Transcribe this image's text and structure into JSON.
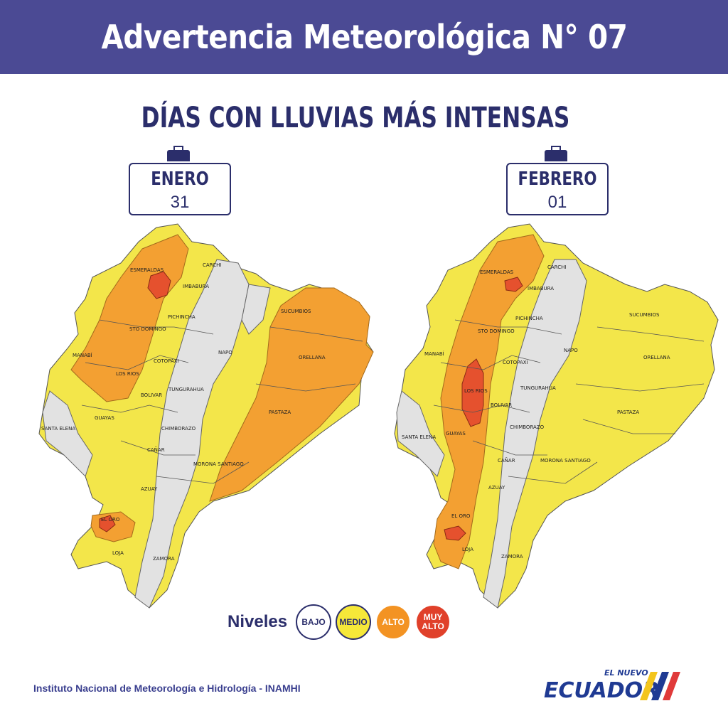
{
  "header": {
    "title": "Advertencia Meteorológica N° 07"
  },
  "subtitle": {
    "part1": "DÍAS CON LLUVIAS ",
    "part2": "MÁS INTENSAS"
  },
  "maps": [
    {
      "month": "ENERO",
      "day": "31"
    },
    {
      "month": "FEBRERO",
      "day": "01"
    }
  ],
  "map_labels": {
    "esmeraldas": "ESMERALDAS",
    "carchi": "CARCHI",
    "imbabura": "IMBABURA",
    "sucumbios": "SUCUMBIOS",
    "pichincha": "PICHINCHA",
    "sto_domingo": "STO DOMINGO",
    "manabi": "MANABÍ",
    "napo": "NAPO",
    "orellana": "ORELLANA",
    "cotopaxi": "COTOPAXI",
    "los_rios": "LOS RIOS",
    "tungurahua": "TUNGURAHUA",
    "bolivar": "BOLIVAR",
    "pastaza": "PASTAZA",
    "santa_elena": "SANTA ELENA",
    "guayas": "GUAYAS",
    "chimborazo": "CHIMBORAZO",
    "canar": "CAÑAR",
    "morona": "MORONA SANTIAGO",
    "azuay": "AZUAY",
    "el_oro": "EL ORO",
    "loja": "LOJA",
    "zamora": "ZAMORA"
  },
  "legend": {
    "label": "Niveles",
    "levels": [
      {
        "name": "BAJO",
        "color": "#ffffff"
      },
      {
        "name": "MEDIO",
        "color": "#f6e839"
      },
      {
        "name": "ALTO",
        "color": "#f39323"
      },
      {
        "name": "MUY ALTO",
        "color": "#e0402a"
      }
    ]
  },
  "colors": {
    "header_bg": "#4b4a94",
    "text_dark": "#2b2e6b",
    "bajo": "#e6e6e6",
    "medio": "#f3e64a",
    "alto": "#f3a032",
    "muy_alto": "#e5512e"
  },
  "footer": {
    "text": "Instituto Nacional de Meteorología e Hidrología - INAMHI"
  },
  "logo": {
    "small": "EL NUEVO",
    "big": "ECUADOR"
  }
}
